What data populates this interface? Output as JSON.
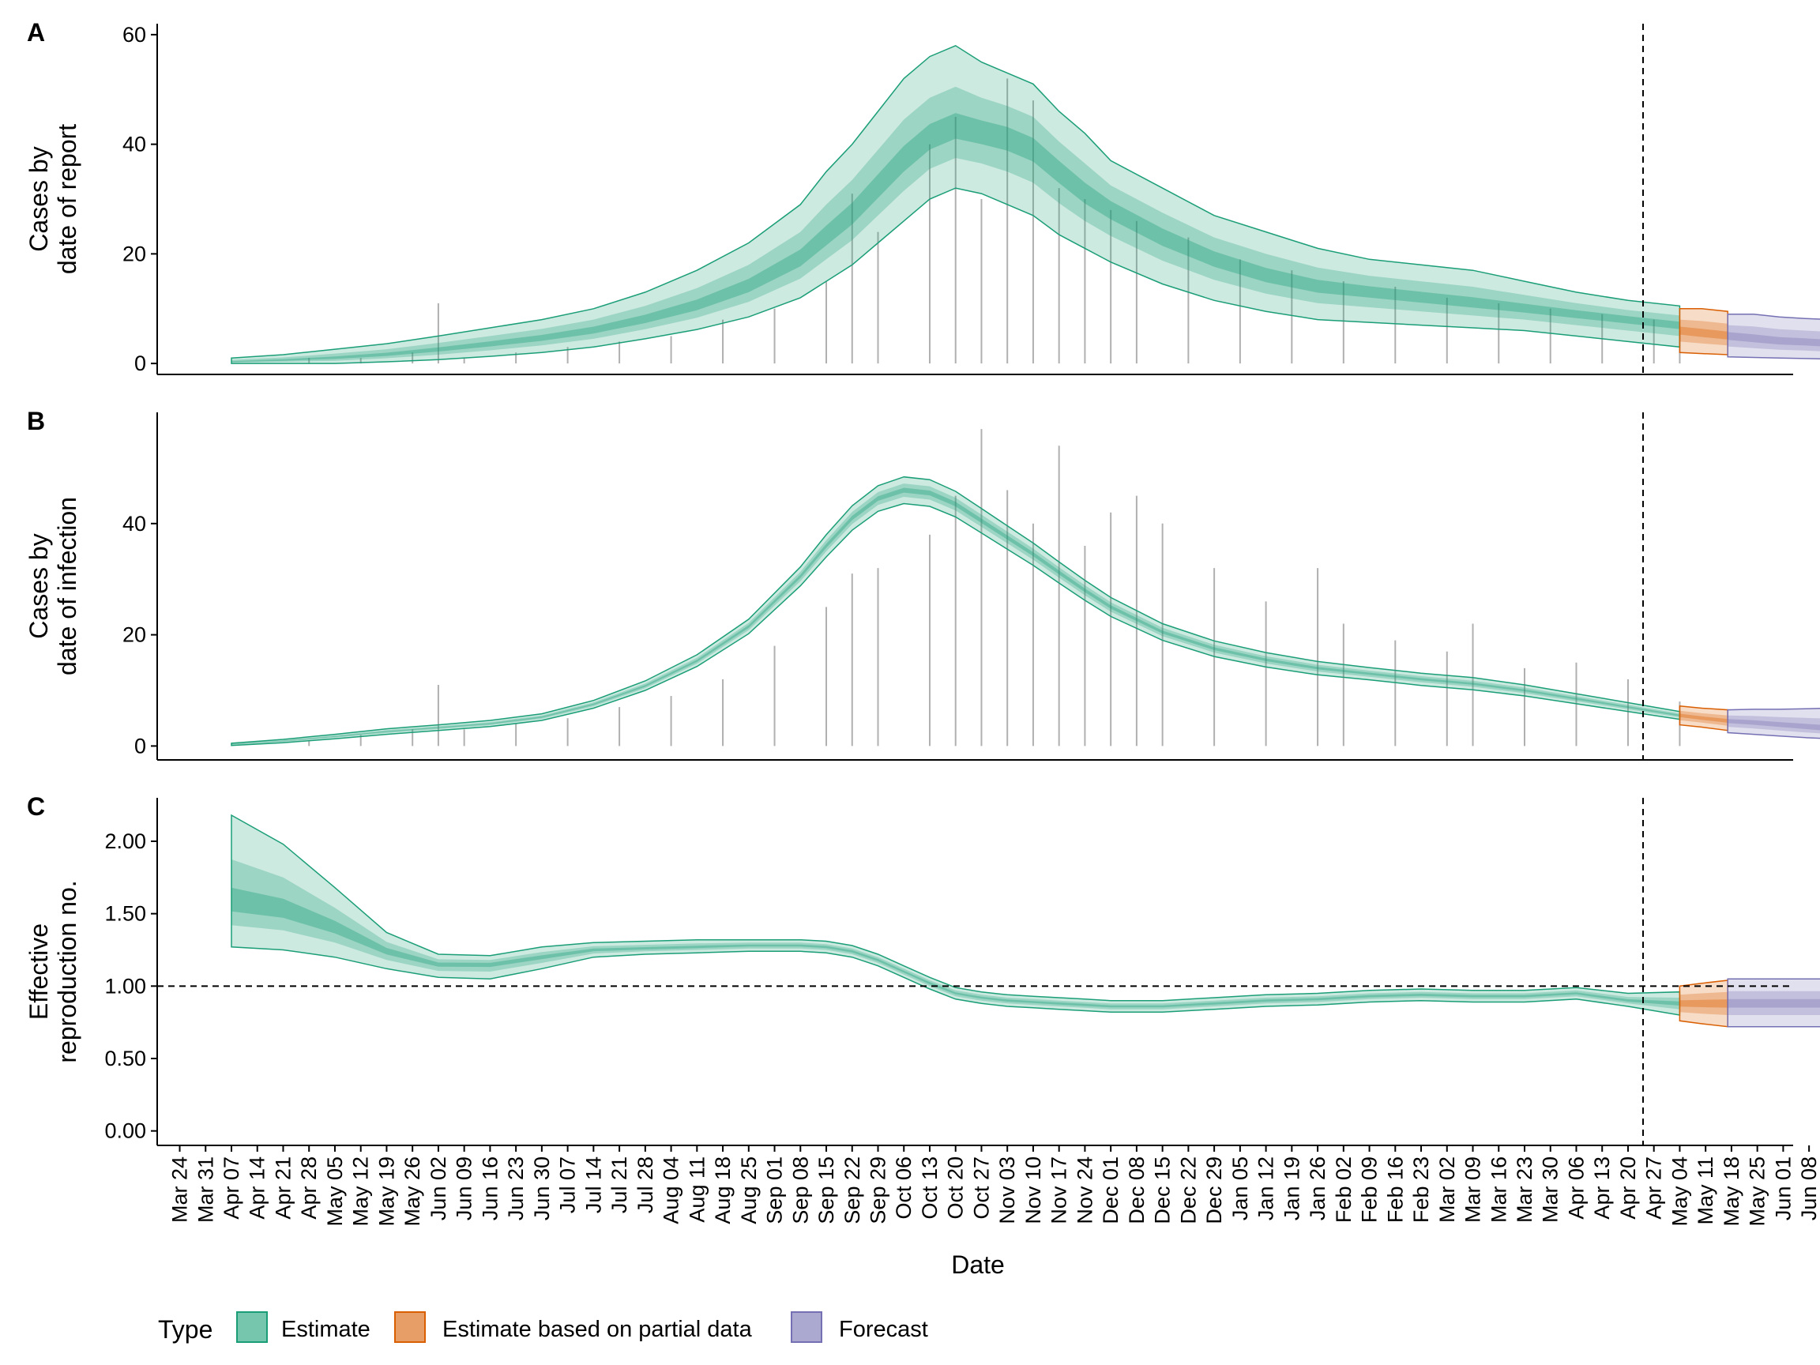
{
  "panels": [
    {
      "tag": "A",
      "ylabel_lines": [
        "Cases by",
        "date of report"
      ],
      "yticks": [
        "0",
        "20",
        "40",
        "60"
      ],
      "ylim": [
        -2,
        62
      ]
    },
    {
      "tag": "B",
      "ylabel_lines": [
        "Cases by",
        "date of infection"
      ],
      "yticks": [
        "0",
        "20",
        "40"
      ],
      "ylim": [
        -2.5,
        60
      ]
    },
    {
      "tag": "C",
      "ylabel_lines": [
        "Effective",
        "reproduction no."
      ],
      "yticks": [
        "0.00",
        "0.50",
        "1.00",
        "1.50",
        "2.00"
      ],
      "ylim": [
        -0.1,
        2.3
      ]
    }
  ],
  "xlabel": "Date",
  "x_ticks": [
    "Mar 24",
    "Mar 31",
    "Apr 07",
    "Apr 14",
    "Apr 21",
    "Apr 28",
    "May 05",
    "May 12",
    "May 19",
    "May 26",
    "Jun 02",
    "Jun 09",
    "Jun 16",
    "Jun 23",
    "Jun 30",
    "Jul 07",
    "Jul 14",
    "Jul 21",
    "Jul 28",
    "Aug 04",
    "Aug 11",
    "Aug 18",
    "Aug 25",
    "Sep 01",
    "Sep 08",
    "Sep 15",
    "Sep 22",
    "Sep 29",
    "Oct 06",
    "Oct 13",
    "Oct 20",
    "Oct 27",
    "Nov 03",
    "Nov 10",
    "Nov 17",
    "Nov 24",
    "Dec 01",
    "Dec 08",
    "Dec 15",
    "Dec 22",
    "Dec 29",
    "Jan 05",
    "Jan 12",
    "Jan 19",
    "Jan 26",
    "Feb 02",
    "Feb 09",
    "Feb 16",
    "Feb 23",
    "Mar 02",
    "Mar 09",
    "Mar 16",
    "Mar 23",
    "Mar 30",
    "Apr 06",
    "Apr 13",
    "Apr 20",
    "Apr 27",
    "May 04",
    "May 11",
    "May 18",
    "May 25",
    "Jun 01",
    "Jun 08"
  ],
  "legend": {
    "title": "Type",
    "items": [
      {
        "label": "Estimate",
        "color": "#1b9e77"
      },
      {
        "label": "Estimate based on partial data",
        "color": "#d95f02"
      },
      {
        "label": "Forecast",
        "color": "#7570b3"
      }
    ]
  },
  "chart_data": [
    {
      "type": "area",
      "panel": "A",
      "ylabel": "Cases by date of report",
      "ylim": [
        0,
        60
      ],
      "observed_bars": [
        [
          7,
          0
        ],
        [
          21,
          1
        ],
        [
          35,
          1
        ],
        [
          49,
          2
        ],
        [
          56,
          11
        ],
        [
          63,
          1
        ],
        [
          77,
          2
        ],
        [
          91,
          3
        ],
        [
          105,
          4
        ],
        [
          119,
          5
        ],
        [
          133,
          8
        ],
        [
          147,
          10
        ],
        [
          161,
          15
        ],
        [
          168,
          31
        ],
        [
          175,
          24
        ],
        [
          189,
          40
        ],
        [
          196,
          45
        ],
        [
          203,
          30
        ],
        [
          210,
          52
        ],
        [
          217,
          48
        ],
        [
          224,
          32
        ],
        [
          231,
          30
        ],
        [
          238,
          28
        ],
        [
          245,
          26
        ],
        [
          259,
          23
        ],
        [
          273,
          19
        ],
        [
          287,
          17
        ],
        [
          301,
          15
        ],
        [
          315,
          14
        ],
        [
          329,
          12
        ],
        [
          343,
          11
        ],
        [
          357,
          10
        ],
        [
          371,
          9
        ],
        [
          385,
          8
        ],
        [
          392,
          6
        ]
      ],
      "series": [
        {
          "name": "Estimate",
          "x": [
            0,
            14,
            28,
            42,
            56,
            70,
            84,
            98,
            112,
            126,
            140,
            154,
            161,
            168,
            175,
            182,
            189,
            196,
            203,
            210,
            217,
            224,
            231,
            238,
            252,
            266,
            280,
            294,
            308,
            322,
            336,
            350,
            364,
            378,
            392
          ],
          "median": [
            0.3,
            0.6,
            1,
            1.6,
            2.5,
            3.5,
            4.6,
            6,
            8,
            10.5,
            14,
            19,
            23,
            27,
            32,
            37,
            41,
            43,
            42,
            41,
            39,
            35,
            31,
            28,
            23,
            19,
            16,
            14,
            13,
            12,
            11,
            10,
            9,
            8,
            7
          ],
          "lower90": [
            0,
            0,
            0,
            0.3,
            0.7,
            1.3,
            2,
            3,
            4.5,
            6.2,
            8.5,
            12,
            15,
            18,
            22,
            26,
            30,
            32,
            31,
            29,
            27,
            23.5,
            21,
            18.5,
            14.5,
            11.5,
            9.5,
            8,
            7.5,
            7,
            6.5,
            6,
            5,
            4,
            3
          ],
          "upper90": [
            1,
            1.6,
            2.6,
            3.6,
            5,
            6.5,
            8,
            10,
            13,
            17,
            22,
            29,
            35,
            40,
            46,
            52,
            56,
            58,
            55,
            53,
            51,
            46,
            42,
            37,
            32,
            27,
            24,
            21,
            19,
            18,
            17,
            15,
            13,
            11.5,
            10.5
          ]
        },
        {
          "name": "Estimate based on partial data",
          "x": [
            392,
            398,
            405
          ],
          "median": [
            6,
            5.5,
            5
          ],
          "lower90": [
            2,
            1.8,
            1.6
          ],
          "upper90": [
            10,
            10,
            9.5
          ]
        },
        {
          "name": "Forecast",
          "x": [
            405,
            412,
            419,
            426,
            433
          ],
          "median": [
            5,
            4.5,
            4,
            3.8,
            3.5
          ],
          "lower90": [
            1.2,
            1.1,
            1,
            0.9,
            0.8
          ],
          "upper90": [
            9,
            9,
            8.5,
            8.2,
            8
          ]
        }
      ]
    },
    {
      "type": "area",
      "panel": "B",
      "ylabel": "Cases by date of infection",
      "ylim": [
        0,
        55
      ],
      "observed_bars": [
        [
          21,
          1
        ],
        [
          35,
          2
        ],
        [
          49,
          3
        ],
        [
          56,
          11
        ],
        [
          63,
          3
        ],
        [
          77,
          4
        ],
        [
          91,
          5
        ],
        [
          105,
          7
        ],
        [
          119,
          9
        ],
        [
          133,
          12
        ],
        [
          147,
          18
        ],
        [
          161,
          25
        ],
        [
          168,
          31
        ],
        [
          175,
          32
        ],
        [
          189,
          38
        ],
        [
          196,
          45
        ],
        [
          203,
          57
        ],
        [
          210,
          46
        ],
        [
          217,
          40
        ],
        [
          224,
          54
        ],
        [
          231,
          36
        ],
        [
          238,
          42
        ],
        [
          245,
          45
        ],
        [
          252,
          40
        ],
        [
          266,
          32
        ],
        [
          280,
          26
        ],
        [
          294,
          32
        ],
        [
          301,
          22
        ],
        [
          315,
          19
        ],
        [
          329,
          17
        ],
        [
          336,
          22
        ],
        [
          350,
          14
        ],
        [
          364,
          15
        ],
        [
          378,
          12
        ],
        [
          392,
          8
        ]
      ],
      "series": [
        {
          "name": "Estimate",
          "x": [
            0,
            14,
            28,
            42,
            56,
            70,
            84,
            98,
            112,
            126,
            140,
            154,
            161,
            168,
            175,
            182,
            189,
            196,
            203,
            210,
            217,
            224,
            231,
            238,
            252,
            266,
            280,
            294,
            308,
            322,
            336,
            350,
            364,
            378,
            392
          ],
          "median": [
            0.3,
            0.9,
            1.7,
            2.6,
            3.3,
            4,
            5.2,
            7.5,
            10.8,
            15.3,
            21.5,
            30.5,
            36,
            41,
            44.5,
            46,
            45.5,
            43.5,
            40.5,
            37.5,
            34.5,
            31.2,
            28,
            25,
            20.5,
            17.5,
            15.5,
            14,
            13,
            12,
            11.2,
            10,
            8.5,
            7,
            5.5
          ],
          "lower90": [
            0.1,
            0.6,
            1.3,
            2.1,
            2.8,
            3.5,
            4.6,
            6.8,
            10,
            14.3,
            20.2,
            28.8,
            34,
            38.8,
            42.2,
            43.6,
            43.1,
            41.2,
            38.3,
            35.4,
            32.5,
            29.3,
            26.2,
            23.3,
            19,
            16.1,
            14.2,
            12.8,
            11.9,
            10.9,
            10.1,
            9,
            7.6,
            6.2,
            4.8
          ],
          "upper90": [
            0.5,
            1.2,
            2.1,
            3.1,
            3.8,
            4.6,
            5.8,
            8.2,
            11.7,
            16.4,
            22.8,
            32.2,
            38,
            43.2,
            46.8,
            48.4,
            47.9,
            45.8,
            42.7,
            39.6,
            36.5,
            33.1,
            29.8,
            26.7,
            22,
            18.9,
            16.8,
            15.2,
            14.1,
            13.1,
            12.3,
            11,
            9.4,
            7.8,
            6.2
          ]
        },
        {
          "name": "Estimate based on partial data",
          "x": [
            392,
            398,
            405
          ],
          "median": [
            5.5,
            5,
            4.5
          ],
          "lower90": [
            3.8,
            3.4,
            2.8
          ],
          "upper90": [
            7.2,
            6.8,
            6.5
          ]
        },
        {
          "name": "Forecast",
          "x": [
            405,
            412,
            419,
            426,
            433
          ],
          "median": [
            4.5,
            4.2,
            3.8,
            3.4,
            3
          ],
          "lower90": [
            2.4,
            2.1,
            1.8,
            1.5,
            1.3
          ],
          "upper90": [
            6.5,
            6.6,
            6.6,
            6.7,
            6.8
          ]
        }
      ]
    },
    {
      "type": "area",
      "panel": "C",
      "ylabel": "Effective reproduction no.",
      "ylim": [
        0,
        2.2
      ],
      "reference_line": 1,
      "series": [
        {
          "name": "Estimate",
          "x": [
            0,
            14,
            28,
            42,
            56,
            70,
            84,
            98,
            112,
            126,
            140,
            154,
            161,
            168,
            175,
            182,
            189,
            196,
            203,
            210,
            217,
            224,
            231,
            238,
            252,
            266,
            280,
            294,
            308,
            322,
            336,
            350,
            364,
            378,
            392
          ],
          "median": [
            1.57,
            1.52,
            1.4,
            1.24,
            1.15,
            1.15,
            1.2,
            1.25,
            1.26,
            1.27,
            1.28,
            1.28,
            1.27,
            1.24,
            1.18,
            1.1,
            1.02,
            0.95,
            0.92,
            0.9,
            0.89,
            0.88,
            0.87,
            0.86,
            0.86,
            0.88,
            0.9,
            0.91,
            0.93,
            0.94,
            0.93,
            0.93,
            0.95,
            0.9,
            0.88
          ],
          "lower90": [
            1.27,
            1.25,
            1.2,
            1.12,
            1.06,
            1.05,
            1.12,
            1.2,
            1.22,
            1.23,
            1.24,
            1.24,
            1.23,
            1.2,
            1.14,
            1.06,
            0.98,
            0.91,
            0.88,
            0.86,
            0.85,
            0.84,
            0.83,
            0.82,
            0.82,
            0.84,
            0.86,
            0.87,
            0.89,
            0.9,
            0.89,
            0.89,
            0.91,
            0.86,
            0.8
          ],
          "upper90": [
            2.18,
            1.98,
            1.68,
            1.37,
            1.22,
            1.21,
            1.27,
            1.3,
            1.31,
            1.32,
            1.32,
            1.32,
            1.31,
            1.28,
            1.22,
            1.14,
            1.06,
            0.99,
            0.96,
            0.94,
            0.93,
            0.92,
            0.91,
            0.9,
            0.9,
            0.92,
            0.94,
            0.95,
            0.97,
            0.98,
            0.97,
            0.97,
            0.99,
            0.95,
            0.96
          ]
        },
        {
          "name": "Estimate based on partial data",
          "x": [
            392,
            398,
            405
          ],
          "median": [
            0.88,
            0.88,
            0.88
          ],
          "lower90": [
            0.76,
            0.74,
            0.72
          ],
          "upper90": [
            1.0,
            1.02,
            1.04
          ]
        },
        {
          "name": "Forecast",
          "x": [
            405,
            412,
            419,
            426,
            433
          ],
          "median": [
            0.88,
            0.88,
            0.88,
            0.88,
            0.88
          ],
          "lower90": [
            0.72,
            0.72,
            0.72,
            0.72,
            0.72
          ],
          "upper90": [
            1.05,
            1.05,
            1.05,
            1.05,
            1.05
          ]
        }
      ]
    }
  ]
}
